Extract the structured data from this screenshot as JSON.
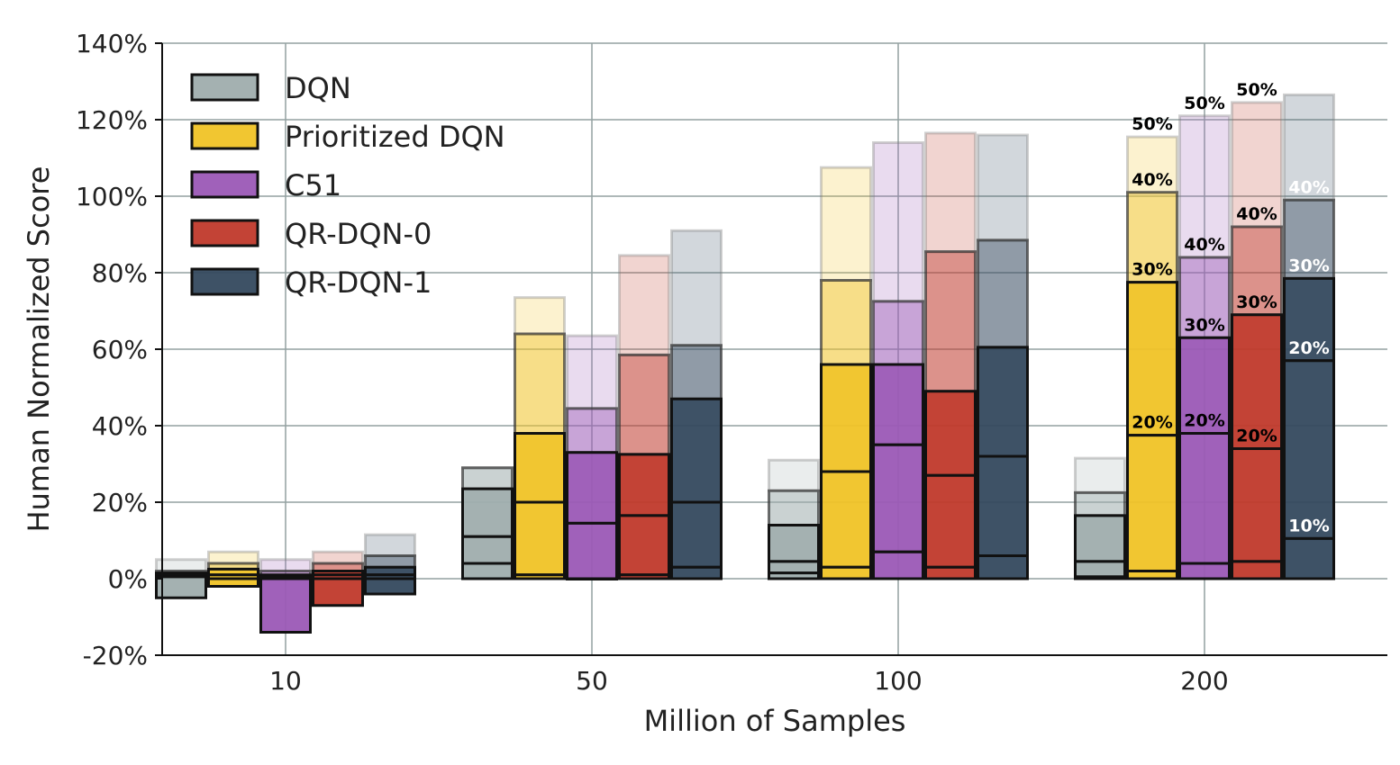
{
  "chart_data": {
    "type": "bar",
    "subtype": "stacked-percentile-bars",
    "xlabel": "Million of Samples",
    "ylabel": "Human Normalized Score",
    "categories": [
      "10",
      "50",
      "100",
      "200"
    ],
    "ylim": [
      -20,
      140
    ],
    "yticks": [
      "-20%",
      "0%",
      "20%",
      "40%",
      "60%",
      "80%",
      "100%",
      "120%",
      "140%"
    ],
    "grid": true,
    "legend_position": "top-left",
    "percentile_levels": [
      "10%",
      "20%",
      "30%",
      "40%",
      "50%"
    ],
    "series": [
      {
        "name": "DQN",
        "color": "#9fadad",
        "label_color": "#000000",
        "values": [
          [
            -5,
            0.5,
            1,
            1.5,
            2,
            5
          ],
          [
            0,
            4,
            11,
            23.5,
            29,
            29
          ],
          [
            0,
            1.5,
            4.5,
            14,
            23,
            31
          ],
          [
            0,
            0.5,
            4.5,
            16.5,
            22.5,
            31.5
          ]
        ]
      },
      {
        "name": "Prioritized DQN",
        "color": "#f0c326",
        "label_color": "#000000",
        "values": [
          [
            -2,
            0,
            1,
            2.5,
            4,
            7
          ],
          [
            0,
            1,
            20,
            38,
            64,
            73.5
          ],
          [
            0,
            3,
            28,
            56,
            78,
            107.5
          ],
          [
            0,
            2,
            37.5,
            77.5,
            101,
            115.5
          ]
        ]
      },
      {
        "name": "C51",
        "color": "#9b59b6",
        "label_color": "#000000",
        "values": [
          [
            -14,
            0,
            0.5,
            1,
            2,
            5
          ],
          [
            0,
            0,
            14.5,
            33,
            44.5,
            63.5
          ],
          [
            0,
            7,
            35,
            56,
            72.5,
            114
          ],
          [
            0,
            4,
            38,
            63,
            84,
            121
          ]
        ]
      },
      {
        "name": "QR-DQN-0",
        "color": "#c0392b",
        "label_color": "#000000",
        "values": [
          [
            -7,
            0,
            1,
            2,
            4,
            7
          ],
          [
            0,
            1,
            16.5,
            32.5,
            58.5,
            84.5
          ],
          [
            0,
            3,
            27,
            49,
            85.5,
            116.5
          ],
          [
            0,
            4.5,
            34,
            69,
            92,
            124.5
          ]
        ]
      },
      {
        "name": "QR-DQN-1",
        "color": "#34495e",
        "label_color": "#ffffff",
        "values": [
          [
            -4,
            0,
            1,
            3,
            6,
            11.5
          ],
          [
            0,
            3,
            20,
            47,
            61,
            91
          ],
          [
            0,
            6,
            32,
            60.5,
            88.5,
            116
          ],
          [
            0,
            10.5,
            57,
            78.5,
            99,
            126.5
          ]
        ]
      }
    ]
  }
}
